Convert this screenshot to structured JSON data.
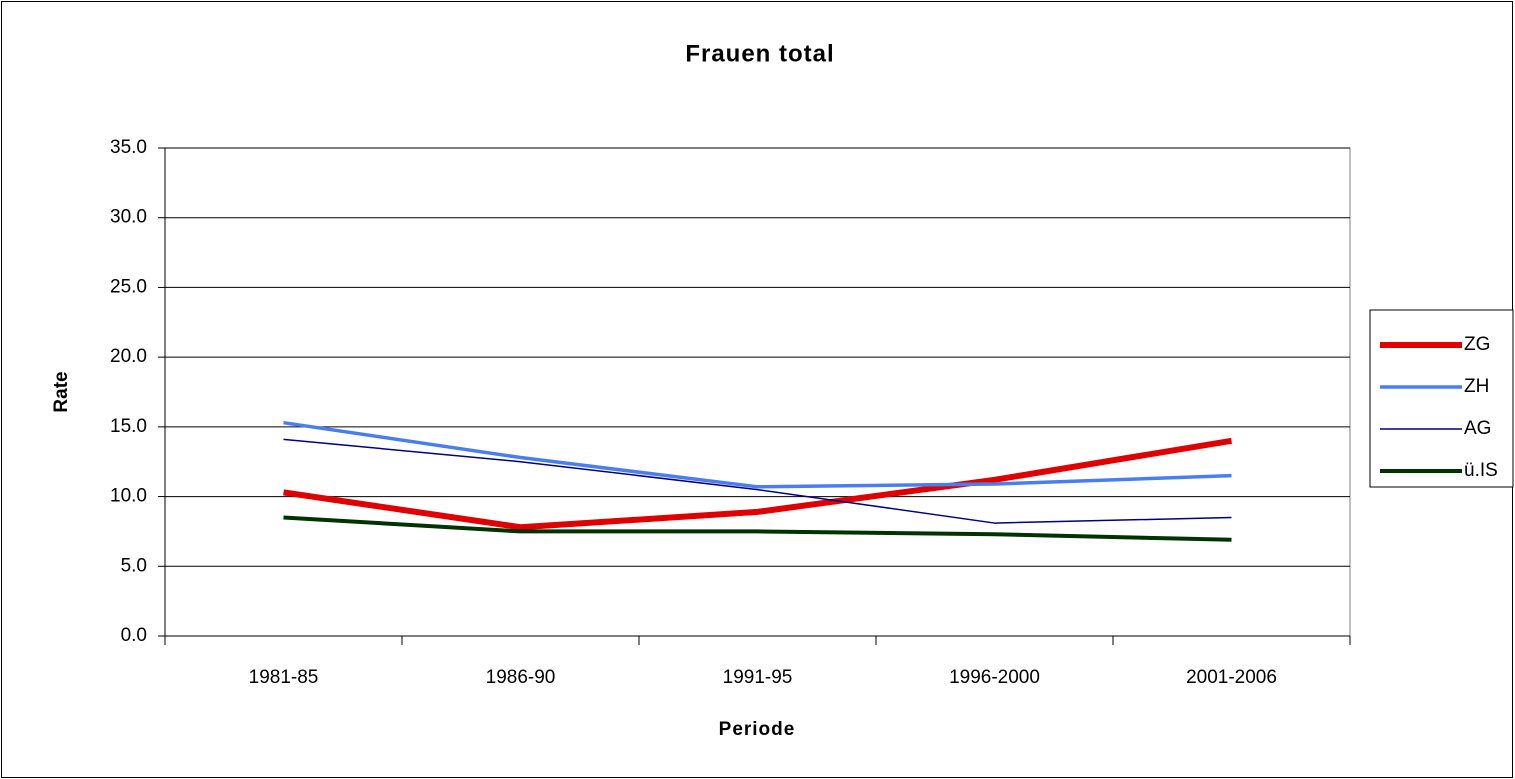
{
  "chart_data": {
    "type": "line",
    "title": "Frauen total",
    "x_label": "Periode",
    "y_label": "Rate",
    "categories": [
      "1981-85",
      "1986-90",
      "1991-95",
      "1996-2000",
      "2001-2006"
    ],
    "series": [
      {
        "name": "ZG",
        "color": "#e00000",
        "width": 6,
        "values": [
          10.3,
          7.8,
          8.9,
          11.2,
          14.0
        ]
      },
      {
        "name": "ZH",
        "color": "#4a7ef0",
        "width": 3.5,
        "values": [
          15.3,
          12.8,
          10.7,
          10.9,
          11.5
        ]
      },
      {
        "name": "AG",
        "color": "#000080",
        "width": 1.5,
        "values": [
          14.1,
          12.5,
          10.5,
          8.1,
          8.5
        ]
      },
      {
        "name": "ü.IS",
        "color": "#003300",
        "width": 4,
        "values": [
          8.5,
          7.5,
          7.5,
          7.3,
          6.9
        ]
      }
    ],
    "ylim": [
      0,
      35
    ],
    "yticks": [
      {
        "value": 0,
        "label": "0.0"
      },
      {
        "value": 5,
        "label": "5.0"
      },
      {
        "value": 10,
        "label": "10.0"
      },
      {
        "value": 15,
        "label": "15.0"
      },
      {
        "value": 20,
        "label": "20.0"
      },
      {
        "value": 25,
        "label": "25.0"
      },
      {
        "value": 30,
        "label": "30.0"
      },
      {
        "value": 35,
        "label": "35.0"
      }
    ],
    "grid": true,
    "legend": "right"
  }
}
